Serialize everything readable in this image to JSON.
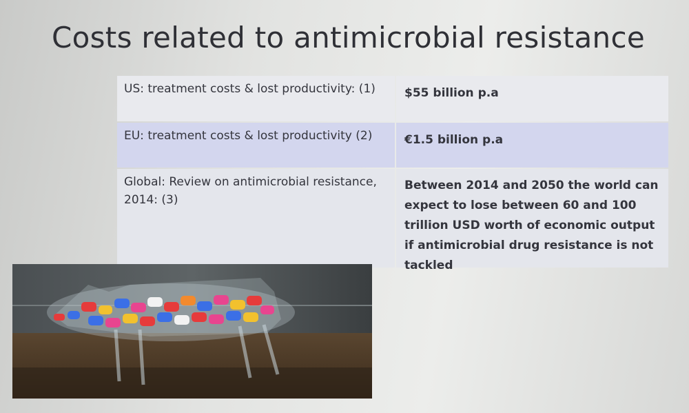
{
  "title": "Costs related to antimicrobial resistance",
  "table": {
    "rows": [
      [
        "US: treatment costs  & lost productivity: (1)",
        "$55 billion p.a"
      ],
      [
        "EU: treatment costs  & lost productivity (2)",
        "€1.5 billion p.a"
      ],
      [
        "Global: Review on antimicrobial resistance, 2014:  (3)",
        "Between 2014 and 2050 the world can expect to lose between 60 and 100 trillion USD worth of economic output if antimicrobial drug resistance is not tackled"
      ]
    ]
  }
}
